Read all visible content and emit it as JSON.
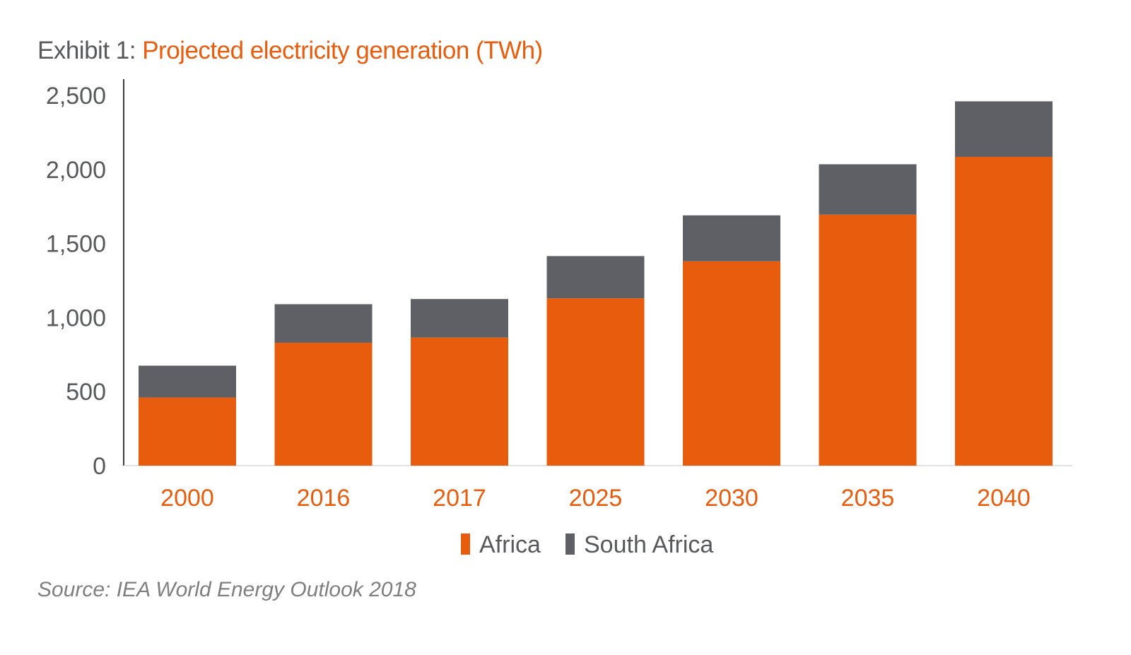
{
  "title_prefix": "Exhibit 1: ",
  "title": "Projected electricity generation (TWh)",
  "source": "Source: IEA World Energy Outlook 2018",
  "colors": {
    "africa": "#e85c0d",
    "south_africa": "#5e6066",
    "axis_text": "#58595b",
    "category_text": "#e85c0d",
    "axis_line": "#3a3a3a"
  },
  "chart_data": {
    "type": "bar",
    "stacked": true,
    "categories": [
      "2000",
      "2016",
      "2017",
      "2025",
      "2030",
      "2035",
      "2040"
    ],
    "series": [
      {
        "name": "Africa",
        "values": [
          460,
          830,
          865,
          1130,
          1380,
          1695,
          2085
        ]
      },
      {
        "name": "South Africa",
        "values": [
          215,
          260,
          260,
          285,
          310,
          340,
          375
        ]
      }
    ],
    "ylim": [
      0,
      2500
    ],
    "yticks": [
      "0",
      "500",
      "1,000",
      "1,500",
      "2,000",
      "2,500"
    ],
    "ytick_values": [
      0,
      500,
      1000,
      1500,
      2000,
      2500
    ],
    "legend_position": "bottom",
    "grid": false
  }
}
